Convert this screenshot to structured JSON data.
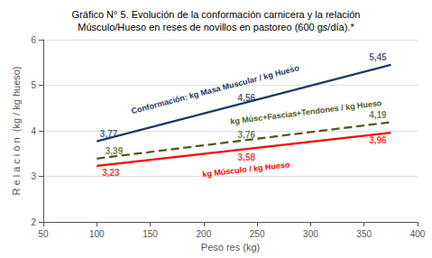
{
  "chart_data": {
    "type": "line",
    "title": "Gráfico N° 5. Evolución de la conformación carnicera y la relación\nMúsculo/Hueso en reses de novillos en pastoreo (600 gs/día).*",
    "xlabel": "Peso res (kg)",
    "ylabel": "R e l a c i ó n  (kg / kg hueso)",
    "xlim": [
      50,
      400
    ],
    "ylim": [
      2,
      6
    ],
    "xticks": [
      50,
      100,
      150,
      200,
      250,
      300,
      350,
      400
    ],
    "yticks": [
      2,
      3,
      4,
      5,
      6
    ],
    "grid": true,
    "series": [
      {
        "name": "Conformación: kg Masa Muscular / kg Hueso",
        "color": "#1F3864",
        "line_style": "solid",
        "x": [
          100,
          375
        ],
        "values": [
          3.77,
          5.45
        ],
        "annotations": [
          {
            "x": 103,
            "y": 3.77,
            "text": "3,77"
          },
          {
            "x": 240,
            "y": 4.56,
            "text": "4,56"
          },
          {
            "x": 371,
            "y": 5.45,
            "text": "5,45"
          }
        ]
      },
      {
        "name": "kg Músc+Fascias+Tendones / kg Hueso",
        "color": "#4E5B1E",
        "line_style": "dashed",
        "x": [
          100,
          375
        ],
        "values": [
          3.39,
          4.19
        ],
        "annotations": [
          {
            "x": 108,
            "y": 3.39,
            "text": "3,39"
          },
          {
            "x": 240,
            "y": 3.76,
            "text": "3,76"
          },
          {
            "x": 371,
            "y": 4.19,
            "text": "4,19"
          }
        ]
      },
      {
        "name": "kg Músculo / kg Hueso",
        "color": "#FF0000",
        "line_style": "solid",
        "x": [
          100,
          375
        ],
        "values": [
          3.23,
          3.96
        ],
        "annotations": [
          {
            "x": 105,
            "y": 3.23,
            "text": "3,23"
          },
          {
            "x": 240,
            "y": 3.58,
            "text": "3,58"
          },
          {
            "x": 371,
            "y": 3.96,
            "text": "3,96"
          }
        ]
      }
    ]
  }
}
